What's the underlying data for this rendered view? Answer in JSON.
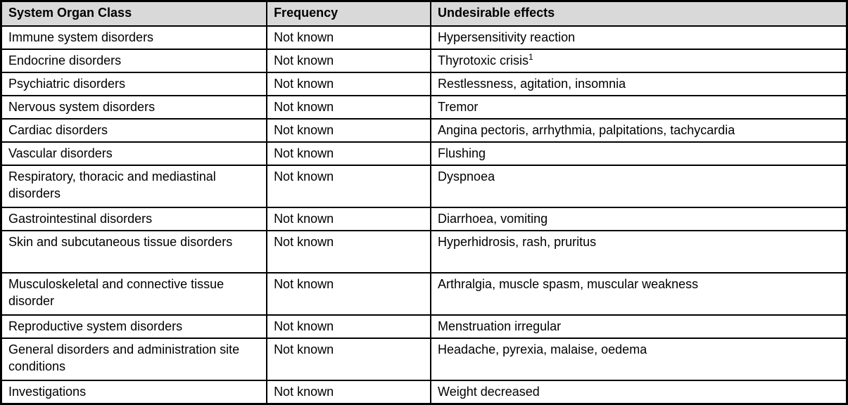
{
  "table": {
    "columns": [
      "System Organ Class",
      "Frequency",
      "Undesirable effects"
    ],
    "rows": [
      {
        "soc": "Immune system disorders",
        "frequency": "Not known",
        "effects": "Hypersensitivity reaction",
        "footnote": ""
      },
      {
        "soc": "Endocrine disorders",
        "frequency": "Not known",
        "effects": "Thyrotoxic crisis",
        "footnote": "1"
      },
      {
        "soc": "Psychiatric disorders",
        "frequency": "Not known",
        "effects": "Restlessness, agitation, insomnia",
        "footnote": ""
      },
      {
        "soc": "Nervous system disorders",
        "frequency": "Not known",
        "effects": "Tremor",
        "footnote": ""
      },
      {
        "soc": "Cardiac disorders",
        "frequency": "Not known",
        "effects": "Angina pectoris, arrhythmia, palpitations, tachycardia",
        "footnote": ""
      },
      {
        "soc": "Vascular disorders",
        "frequency": "Not known",
        "effects": "Flushing",
        "footnote": ""
      },
      {
        "soc": "Respiratory, thoracic and mediastinal disorders",
        "frequency": "Not known",
        "effects": "Dyspnoea",
        "footnote": ""
      },
      {
        "soc": "Gastrointestinal disorders",
        "frequency": "Not known",
        "effects": "Diarrhoea, vomiting",
        "footnote": ""
      },
      {
        "soc": "Skin and subcutaneous tissue disorders",
        "frequency": "Not known",
        "effects": "Hyperhidrosis, rash, pruritus",
        "footnote": ""
      },
      {
        "soc": "Musculoskeletal and connective tissue disorder",
        "frequency": "Not known",
        "effects": "Arthralgia, muscle spasm, muscular weakness",
        "footnote": ""
      },
      {
        "soc": "Reproductive system disorders",
        "frequency": "Not known",
        "effects": "Menstruation irregular",
        "footnote": ""
      },
      {
        "soc": "General disorders and administration site conditions",
        "frequency": "Not known",
        "effects": "Headache, pyrexia, malaise, oedema",
        "footnote": ""
      },
      {
        "soc": "Investigations",
        "frequency": "Not known",
        "effects": "Weight decreased",
        "footnote": ""
      }
    ],
    "colors": {
      "header_bg": "#d9d9d9",
      "border": "#000000",
      "row_bg": "#ffffff",
      "text": "#000000"
    }
  }
}
